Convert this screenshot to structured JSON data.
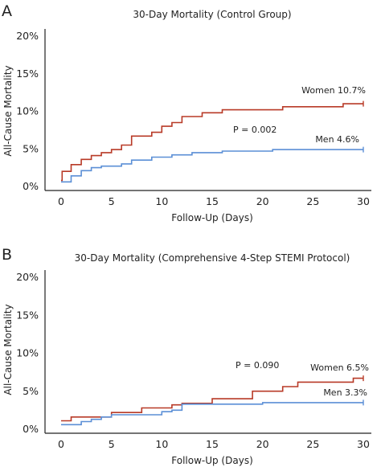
{
  "colors": {
    "women": "#b83a27",
    "men": "#5b8fd6",
    "axis": "#222222"
  },
  "chart_data": [
    {
      "type": "line",
      "panel": "A",
      "title": "30-Day Mortality (Control Group)",
      "xlabel": "Follow-Up (Days)",
      "ylabel": "All-Cause Mortality",
      "xlim": [
        0,
        30
      ],
      "ylim": [
        0,
        20
      ],
      "xticks": [
        "0",
        "5",
        "10",
        "15",
        "20",
        "25",
        "30"
      ],
      "yticks": [
        "0%",
        "5%",
        "10%",
        "15%",
        "20%"
      ],
      "p_value": "P = 0.002",
      "series": [
        {
          "key": "women",
          "label": "Women 10.7%",
          "x": [
            0,
            0.1,
            1,
            2,
            3,
            4,
            5,
            6,
            7,
            9,
            10,
            11,
            12,
            14,
            16,
            22,
            28,
            30
          ],
          "y": [
            0.7,
            1.9,
            2.8,
            3.5,
            4.0,
            4.4,
            4.8,
            5.4,
            6.6,
            7.1,
            7.9,
            8.4,
            9.2,
            9.7,
            10.1,
            10.5,
            10.9,
            10.9
          ]
        },
        {
          "key": "men",
          "label": "Men 4.6%",
          "x": [
            0,
            1,
            2,
            3,
            4,
            6,
            7,
            9,
            11,
            13,
            16,
            21,
            30
          ],
          "y": [
            0.5,
            1.3,
            2.0,
            2.4,
            2.6,
            2.9,
            3.4,
            3.8,
            4.1,
            4.4,
            4.6,
            4.8,
            4.8
          ]
        }
      ]
    },
    {
      "type": "line",
      "panel": "B",
      "title": "30-Day Mortality (Comprehensive 4-Step STEMI Protocol)",
      "xlabel": "Follow-Up (Days)",
      "ylabel": "All-Cause Mortality",
      "xlim": [
        0,
        30
      ],
      "ylim": [
        0,
        20
      ],
      "xticks": [
        "0",
        "5",
        "10",
        "15",
        "20",
        "25",
        "30"
      ],
      "yticks": [
        "0%",
        "5%",
        "10%",
        "15%",
        "20%"
      ],
      "p_value": "P = 0.090",
      "series": [
        {
          "key": "women",
          "label": "Women 6.5%",
          "x": [
            0,
            1,
            5,
            8,
            11,
            12,
            15,
            19,
            22,
            23.5,
            29,
            30
          ],
          "y": [
            1.0,
            1.5,
            2.1,
            2.7,
            3.1,
            3.3,
            3.9,
            4.9,
            5.5,
            6.1,
            6.6,
            6.6
          ]
        },
        {
          "key": "men",
          "label": "Men 3.3%",
          "x": [
            0,
            2,
            3,
            4,
            5,
            10,
            11,
            12,
            20,
            30
          ],
          "y": [
            0.5,
            0.9,
            1.2,
            1.5,
            1.8,
            2.2,
            2.4,
            3.2,
            3.4,
            3.4
          ]
        }
      ]
    }
  ]
}
